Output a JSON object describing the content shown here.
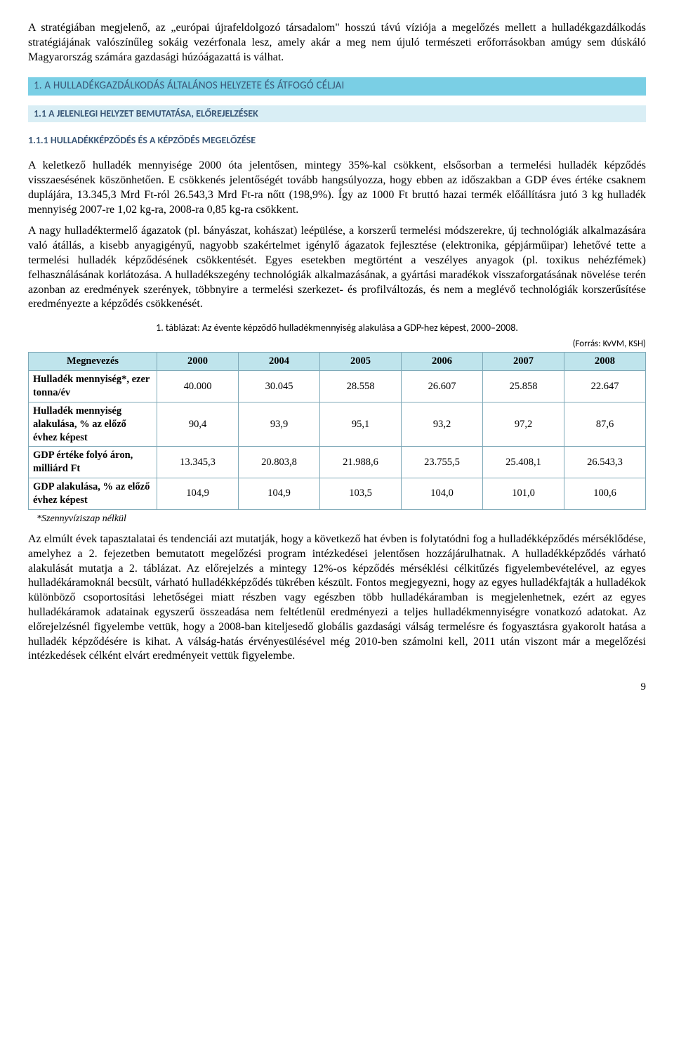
{
  "intro_para": "A stratégiában megjelenő, az „európai újrafeldolgozó társadalom\" hosszú távú víziója a megelőzés mellett a hulladékgazdálkodás stratégiájának valószínűleg sokáig vezérfonala lesz, amely akár a meg nem újuló természeti erőforrásokban amúgy sem dúskáló Magyarország számára gazdasági húzóágazattá is válhat.",
  "section": "1. A HULLADÉKGAZDÁLKODÁS ÁLTALÁNOS HELYZETE ÉS ÁTFOGÓ CÉLJAI",
  "subsection": "1.1 A JELENLEGI HELYZET BEMUTATÁSA, ELŐREJELZÉSEK",
  "subsub": "1.1.1 HULLADÉKKÉPZŐDÉS ÉS A KÉPZŐDÉS MEGELŐZÉSE",
  "p1": "A keletkező hulladék mennyisége 2000 óta jelentősen, mintegy 35%-kal csökkent, elsősorban a termelési hulladék képződés visszaesésének köszönhetően. E csökkenés jelentőségét tovább hangsúlyozza, hogy ebben az időszakban a GDP éves értéke csaknem duplájára, 13.345,3 Mrd Ft-ról 26.543,3 Mrd Ft-ra nőtt (198,9%). Így az 1000 Ft bruttó hazai termék előállításra jutó 3 kg hulladék mennyiség 2007-re 1,02 kg-ra, 2008-ra 0,85 kg-ra csökkent.",
  "p2": "A nagy hulladéktermelő ágazatok (pl. bányászat, kohászat) leépülése, a korszerű termelési módszerekre, új technológiák alkalmazására való átállás, a kisebb anyagigényű, nagyobb szakértelmet igénylő ágazatok fejlesztése (elektronika, gépjárműipar) lehetővé tette a termelési hulladék képződésének csökkentését. Egyes esetekben megtörtént a veszélyes anyagok (pl. toxikus nehézfémek) felhasználásának korlátozása. A hulladékszegény technológiák alkalmazásának, a gyártási maradékok visszaforgatásának növelése terén azonban az eredmények szerények, többnyire a termelési szerkezet- és profilváltozás, és nem a meglévő technológiák korszerűsítése eredményezte a képződés csökkenését.",
  "table_caption": "1. táblázat: Az évente képződő hulladékmennyiség alakulása a GDP-hez képest, 2000–2008.",
  "table_source": "(Forrás: KvVM, KSH)",
  "table": {
    "head_label": "Megnevezés",
    "years": [
      "2000",
      "2004",
      "2005",
      "2006",
      "2007",
      "2008"
    ],
    "rows": [
      {
        "label": "Hulladék mennyiség*, ezer tonna/év",
        "cells": [
          "40.000",
          "30.045",
          "28.558",
          "26.607",
          "25.858",
          "22.647"
        ]
      },
      {
        "label": "Hulladék mennyiség alakulása, % az előző évhez képest",
        "cells": [
          "90,4",
          "93,9",
          "95,1",
          "93,2",
          "97,2",
          "87,6"
        ]
      },
      {
        "label": "GDP értéke folyó áron, milliárd Ft",
        "cells": [
          "13.345,3",
          "20.803,8",
          "21.988,6",
          "23.755,5",
          "25.408,1",
          "26.543,3"
        ]
      },
      {
        "label": "GDP alakulása, % az előző évhez képest",
        "cells": [
          "104,9",
          "104,9",
          "103,5",
          "104,0",
          "101,0",
          "100,6"
        ]
      }
    ]
  },
  "table_note": "*Szennyvíziszap nélkül",
  "p3": "Az elmúlt évek tapasztalatai és tendenciái azt mutatják, hogy a következő hat évben is folytatódni fog a hulladékképződés mérséklődése, amelyhez a 2. fejezetben bemutatott megelőzési program intézkedései jelentősen hozzájárulhatnak. A hulladékképződés várható alakulását mutatja a 2. táblázat. Az előrejelzés a mintegy 12%-os képződés mérséklési célkitűzés figyelembevételével, az egyes hulladékáramoknál becsült, várható hulladékképződés tükrében készült. Fontos megjegyezni, hogy az egyes hulladékfajták a hulladékok különböző csoportosítási lehetőségei miatt részben vagy egészben több hulladékáramban is megjelenhetnek, ezért az egyes hulladékáramok adatainak egyszerű összeadása nem feltétlenül eredményezi a teljes hulladékmennyiségre vonatkozó adatokat. Az előrejelzésnél figyelembe vettük, hogy a 2008-ban kiteljesedő globális gazdasági válság termelésre és fogyasztásra gyakorolt hatása a hulladék képződésére is kihat. A válság-hatás érvényesülésével még 2010-ben számolni kell, 2011 után viszont már a megelőzési intézkedések célként elvárt eredményeit vettük figyelembe.",
  "page_num": "9"
}
